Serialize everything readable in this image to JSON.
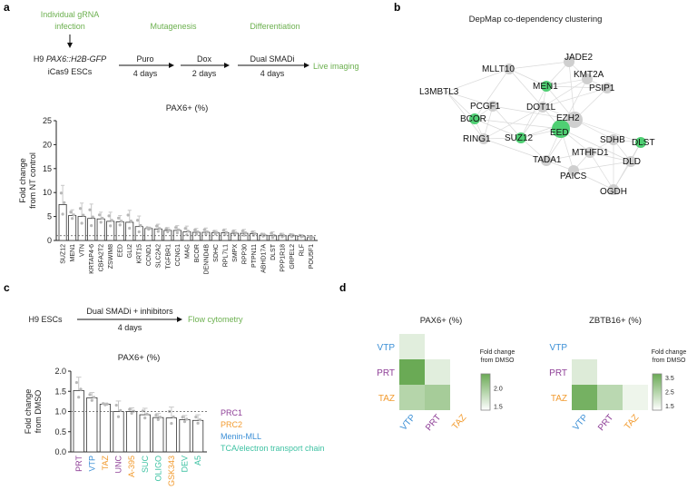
{
  "panels": {
    "a": {
      "letter": "a",
      "schematic": {
        "step0": [
          "Individual gRNA",
          "infection"
        ],
        "cells": [
          "H9 ",
          "PAX6::H2B-GFP",
          "iCas9 ESCs"
        ],
        "stage1": "Mutagenesis",
        "stage2": "Differentiation",
        "arrow1": [
          "Puro",
          "4 days"
        ],
        "arrow2": [
          "Dox",
          "2 days"
        ],
        "arrow3": [
          "Dual SMADi",
          "4 days"
        ],
        "end": "Live imaging"
      }
    },
    "b": {
      "letter": "b",
      "title": "DepMap co-dependency clustering"
    },
    "c": {
      "letter": "c",
      "schematic": {
        "start": "H9 ESCs",
        "arrow": [
          "Dual SMADi + inhibitors",
          "4 days"
        ],
        "end": "Flow cytometry"
      },
      "legend": [
        {
          "label": "PRC1",
          "color": "#8e3f97"
        },
        {
          "label": "PRC2",
          "color": "#f29b2f"
        },
        {
          "label": "Menin-MLL",
          "color": "#3b8fd6"
        },
        {
          "label": "TCA/electron transport chain",
          "color": "#3fc2a3"
        }
      ]
    },
    "d": {
      "letter": "d"
    }
  },
  "colors": {
    "accent_green": "#6cb04f",
    "node_green": "#4fcf73",
    "node_gray": "#cfcfcf",
    "bar_edge": "#333333"
  },
  "chart_data": [
    {
      "type": "bar",
      "title": "PAX6+ (%)",
      "ylabel": [
        "Fold change",
        "from NT control"
      ],
      "ylim": [
        0,
        25
      ],
      "yticks": [
        "0",
        "5",
        "10",
        "15",
        "20",
        "25"
      ],
      "reference_line": 1,
      "categories": [
        "SUZ12",
        "MEN1",
        "VTN",
        "KRTAP4-6",
        "CBFA2T2",
        "ZSWIM8",
        "EED",
        "GLI2",
        "KRT15",
        "CCND1",
        "SLC2A2",
        "TGFBR1",
        "CCNG1",
        "MAG",
        "BCOR",
        "DENND4B",
        "SDHC",
        "RPL7L1",
        "SMPX",
        "RPP30",
        "PTPN11",
        "ABHD17A",
        "DLST",
        "PPP1R18",
        "GRPEL2",
        "RLF",
        "POU5F1"
      ],
      "values": [
        7.5,
        5.2,
        5.0,
        4.6,
        4.5,
        4.0,
        3.9,
        3.8,
        2.9,
        2.5,
        2.4,
        2.1,
        2.1,
        1.8,
        1.7,
        1.7,
        1.6,
        1.6,
        1.5,
        1.5,
        1.4,
        1.1,
        1.0,
        1.0,
        1.0,
        0.9,
        0.6
      ],
      "errors": [
        4.0,
        1.2,
        2.8,
        3.0,
        1.4,
        1.9,
        1.3,
        2.5,
        2.2,
        0.3,
        1.0,
        0.6,
        1.0,
        1.2,
        0.8,
        0.9,
        0.5,
        0.8,
        0.7,
        0.8,
        0.6,
        0.4,
        0.8,
        0.5,
        0.4,
        0.3,
        0.4
      ]
    },
    {
      "type": "bar",
      "title": "PAX6+ (%)",
      "ylabel": [
        "Fold change",
        "from DMSO"
      ],
      "ylim": [
        0,
        2.0
      ],
      "yticks": [
        "0.0",
        "0.5",
        "1.0",
        "1.5",
        "2.0"
      ],
      "reference_line": 1,
      "categories": [
        "PRT",
        "VTP",
        "TAZ",
        "UNC",
        "A-395",
        "SUC",
        "OLIGO",
        "GSK343",
        "DEV",
        "A5"
      ],
      "category_groups": [
        "PRC1",
        "Menin-MLL",
        "PRC2",
        "PRC1",
        "PRC2",
        "TCA/electron transport chain",
        "TCA/electron transport chain",
        "PRC2",
        "TCA/electron transport chain",
        "TCA/electron transport chain"
      ],
      "values": [
        1.52,
        1.34,
        1.18,
        1.0,
        1.0,
        0.92,
        0.85,
        0.84,
        0.8,
        0.78
      ],
      "errors": [
        0.33,
        0.13,
        0.03,
        0.26,
        0.09,
        0.16,
        0.1,
        0.27,
        0.1,
        0.14
      ]
    },
    {
      "type": "heatmap",
      "title": "PAX6+ (%)",
      "rows": [
        "VTP",
        "PRT",
        "TAZ"
      ],
      "cols": [
        "VTP",
        "PRT",
        "TAZ"
      ],
      "values": [
        [
          1.6,
          null,
          null
        ],
        [
          2.4,
          1.6,
          null
        ],
        [
          1.9,
          2.0,
          1.4
        ]
      ],
      "colorbar": {
        "title": [
          "Fold change",
          "from DMSO"
        ],
        "range": [
          1.4,
          2.4
        ],
        "ticks": [
          "2.0",
          "1.5"
        ],
        "tick_values": [
          2.0,
          1.5
        ]
      }
    },
    {
      "type": "heatmap",
      "title": "ZBTB16+ (%)",
      "rows": [
        "VTP",
        "PRT",
        "TAZ"
      ],
      "cols": [
        "VTP",
        "PRT",
        "TAZ"
      ],
      "values": [
        [
          1.2,
          null,
          null
        ],
        [
          1.8,
          1.2,
          null
        ],
        [
          3.6,
          2.4,
          1.5
        ]
      ],
      "colorbar": {
        "title": [
          "Fold change",
          "from DMSO"
        ],
        "range": [
          1.2,
          3.8
        ],
        "ticks": [
          "3.5",
          "2.5",
          "1.5"
        ],
        "tick_values": [
          3.5,
          2.5,
          1.5
        ]
      }
    },
    {
      "type": "network",
      "nodes": [
        {
          "id": "MLLT10",
          "group": "gray"
        },
        {
          "id": "JADE2",
          "group": "gray"
        },
        {
          "id": "KMT2A",
          "group": "gray"
        },
        {
          "id": "MEN1",
          "group": "green"
        },
        {
          "id": "PSIP1",
          "group": "gray"
        },
        {
          "id": "L3MBTL3",
          "group": "gray"
        },
        {
          "id": "PCGF1",
          "group": "gray"
        },
        {
          "id": "DOT1L",
          "group": "gray"
        },
        {
          "id": "BCOR",
          "group": "green"
        },
        {
          "id": "EZH2",
          "group": "gray"
        },
        {
          "id": "EED",
          "group": "green"
        },
        {
          "id": "SUZ12",
          "group": "green"
        },
        {
          "id": "RING1",
          "group": "gray"
        },
        {
          "id": "SDHB",
          "group": "gray"
        },
        {
          "id": "DLST",
          "group": "green"
        },
        {
          "id": "MTHFD1",
          "group": "gray"
        },
        {
          "id": "DLD",
          "group": "gray"
        },
        {
          "id": "TADA1",
          "group": "gray"
        },
        {
          "id": "PAICS",
          "group": "gray"
        },
        {
          "id": "OGDH",
          "group": "gray"
        }
      ]
    }
  ]
}
